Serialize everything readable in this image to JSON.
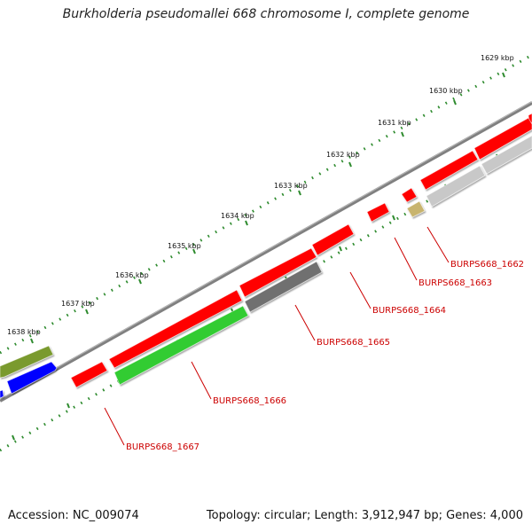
{
  "title": "Burkholderia pseudomallei 668 chromosome I, complete genome",
  "footer": {
    "accession": "Accession: NC_009074",
    "topology": "Topology: circular; Length: 3,912,947 bp; Genes: 4,000"
  },
  "colors": {
    "tick": "#2e8b2e",
    "backbone": "#808080",
    "red": "#ff0000",
    "green": "#33cc33",
    "darkgray": "#707070",
    "lightgray": "#c8c8c8",
    "olive": "#7a9a2e",
    "blue": "#0000ff",
    "khaki": "#c8b46e",
    "label": "#cc0000"
  },
  "ruler_labels": [
    "1629 kbp",
    "1630 kbp",
    "1631 kbp",
    "1632 kbp",
    "1633 kbp",
    "1634 kbp",
    "1635 kbp",
    "1636 kbp",
    "1637 kbp",
    "1638 kbp"
  ],
  "gene_labels": [
    "BURPS668_1662",
    "BURPS668_1663",
    "BURPS668_1664",
    "BURPS668_1665",
    "BURPS668_1666",
    "BURPS668_1667"
  ],
  "features": [
    {
      "name": "outer-red-1",
      "color": "red"
    },
    {
      "name": "outer-red-2",
      "color": "red"
    },
    {
      "name": "outer-red-3",
      "color": "red"
    },
    {
      "name": "outer-red-4",
      "color": "red"
    },
    {
      "name": "outer-red-5",
      "color": "red"
    },
    {
      "name": "outer-red-6",
      "color": "red"
    },
    {
      "name": "outer-red-7",
      "color": "red"
    },
    {
      "name": "outer-red-8",
      "color": "red"
    },
    {
      "name": "outer-red-9",
      "color": "red"
    },
    {
      "name": "outer-olive",
      "color": "olive"
    },
    {
      "name": "outer-blue",
      "color": "blue"
    },
    {
      "name": "inner-green",
      "color": "green"
    },
    {
      "name": "inner-darkgray",
      "color": "darkgray"
    },
    {
      "name": "inner-lightgray-1",
      "color": "lightgray"
    },
    {
      "name": "inner-lightgray-2",
      "color": "lightgray"
    },
    {
      "name": "inner-khaki",
      "color": "khaki"
    }
  ]
}
